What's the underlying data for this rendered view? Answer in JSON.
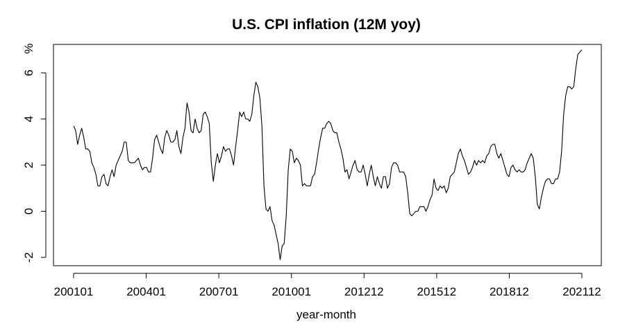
{
  "chart_data": {
    "type": "line",
    "title": "U.S. CPI inflation (12M yoy)",
    "xlabel": "year-month",
    "ylabel": "%",
    "ylim": [
      -2.3,
      7.2
    ],
    "yticks": [
      -2,
      0,
      2,
      4,
      6
    ],
    "x_tick_labels": [
      "200101",
      "200401",
      "200701",
      "201001",
      "201212",
      "201512",
      "201812",
      "202112"
    ],
    "x_start": "2001-01",
    "x_end": "2021-12",
    "series": [
      {
        "name": "",
        "values": [
          3.7,
          3.5,
          2.9,
          3.3,
          3.6,
          3.2,
          2.7,
          2.7,
          2.6,
          2.1,
          1.9,
          1.6,
          1.1,
          1.1,
          1.5,
          1.6,
          1.2,
          1.1,
          1.5,
          1.8,
          1.5,
          2.0,
          2.2,
          2.4,
          2.6,
          3.0,
          3.0,
          2.2,
          2.1,
          2.1,
          2.1,
          2.2,
          2.3,
          2.0,
          1.8,
          1.9,
          1.9,
          1.7,
          1.7,
          2.3,
          3.1,
          3.3,
          3.0,
          2.7,
          2.5,
          3.2,
          3.5,
          3.3,
          3.0,
          3.0,
          3.1,
          3.5,
          2.8,
          2.5,
          3.2,
          3.6,
          4.7,
          4.3,
          3.5,
          3.4,
          4.0,
          3.6,
          3.4,
          3.5,
          4.2,
          4.3,
          4.1,
          3.8,
          2.1,
          1.3,
          2.0,
          2.5,
          2.1,
          2.4,
          2.8,
          2.6,
          2.7,
          2.7,
          2.4,
          2.0,
          2.8,
          3.5,
          4.3,
          4.1,
          4.3,
          4.0,
          4.0,
          3.9,
          4.2,
          5.0,
          5.6,
          5.4,
          4.9,
          3.7,
          1.1,
          0.1,
          0.0,
          0.2,
          -0.4,
          -0.6,
          -1.0,
          -1.4,
          -2.1,
          -1.5,
          -1.4,
          -0.2,
          1.8,
          2.7,
          2.6,
          2.1,
          2.3,
          2.2,
          2.0,
          1.1,
          1.2,
          1.1,
          1.1,
          1.1,
          1.5,
          1.6,
          2.1,
          2.7,
          3.2,
          3.6,
          3.6,
          3.8,
          3.9,
          3.8,
          3.5,
          3.4,
          3.4,
          3.0,
          2.7,
          2.3,
          1.7,
          1.8,
          1.4,
          1.7,
          2.0,
          2.2,
          1.8,
          1.7,
          1.7,
          2.0,
          1.6,
          1.1,
          1.6,
          2.0,
          1.5,
          1.1,
          1.5,
          1.2,
          1.0,
          1.5,
          1.5,
          1.0,
          1.2,
          1.9,
          2.1,
          2.1,
          2.0,
          1.7,
          1.7,
          1.7,
          1.5,
          0.8,
          -0.1,
          -0.2,
          -0.1,
          0.0,
          0.0,
          0.2,
          0.2,
          0.2,
          0.0,
          0.2,
          0.5,
          0.7,
          1.4,
          1.0,
          0.9,
          1.1,
          1.0,
          1.1,
          0.8,
          1.0,
          1.5,
          1.6,
          1.7,
          2.1,
          2.5,
          2.7,
          2.4,
          2.2,
          1.9,
          1.6,
          1.7,
          1.9,
          2.2,
          2.0,
          2.2,
          2.1,
          2.2,
          2.1,
          2.4,
          2.5,
          2.8,
          2.9,
          2.9,
          2.5,
          2.3,
          2.5,
          2.2,
          1.9,
          1.6,
          1.5,
          1.9,
          2.0,
          1.8,
          1.7,
          1.8,
          1.7,
          1.7,
          1.8,
          2.1,
          2.3,
          2.5,
          2.3,
          1.5,
          0.3,
          0.1,
          0.6,
          1.0,
          1.3,
          1.4,
          1.4,
          1.2,
          1.2,
          1.4,
          1.4,
          1.7,
          2.6,
          4.2,
          5.0,
          5.4,
          5.4,
          5.3,
          5.4,
          6.2,
          6.8,
          6.9,
          7.0
        ]
      }
    ]
  }
}
